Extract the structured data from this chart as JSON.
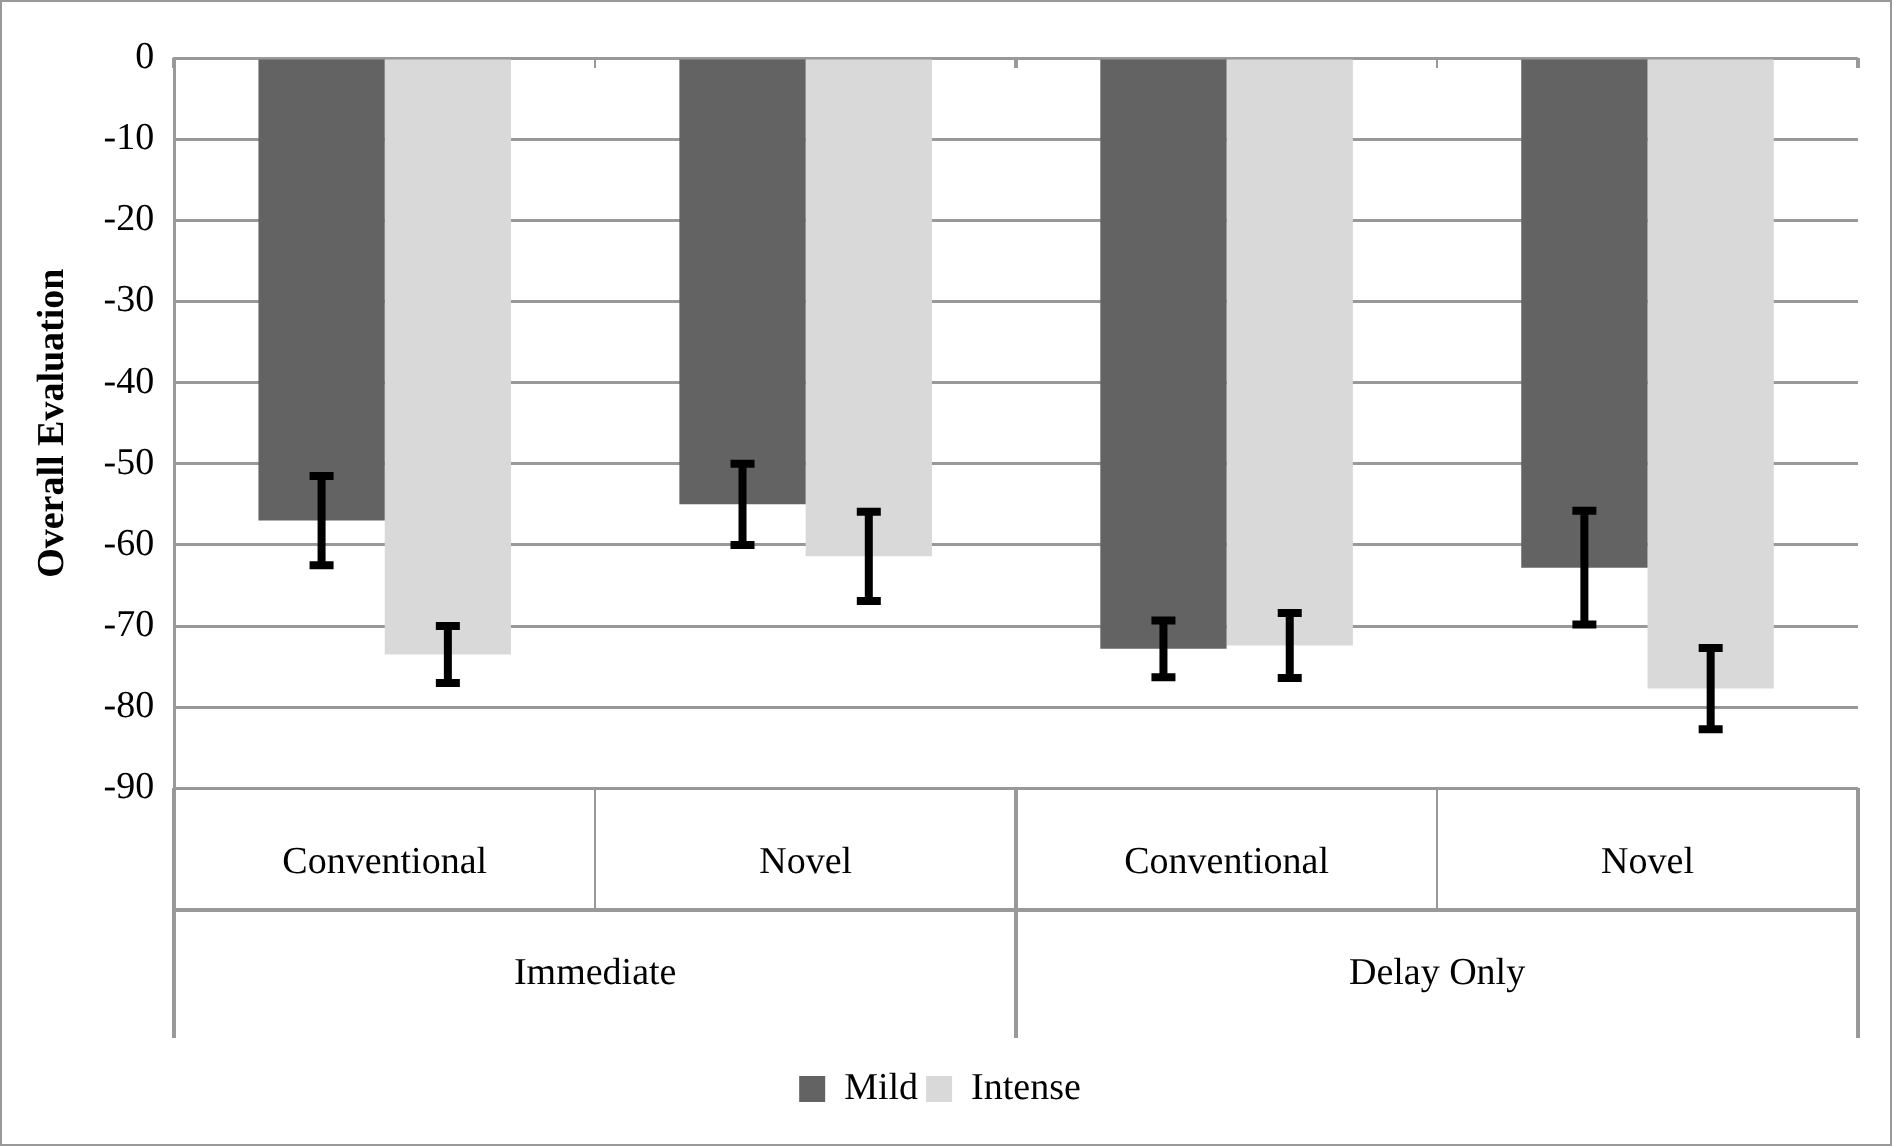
{
  "chart_data": {
    "type": "bar",
    "ylabel": "Overall Evaluation",
    "categories": [
      "Conventional",
      "Novel",
      "Conventional",
      "Novel"
    ],
    "annotations": [
      "Immediate",
      "Delay Only"
    ],
    "series": [
      {
        "name": "Mild",
        "color": "#636363",
        "values": [
          -57,
          -55,
          -72.8,
          -62.8
        ],
        "errors": [
          5.5,
          5,
          3.5,
          7
        ]
      },
      {
        "name": "Intense",
        "color": "#d9d9d9",
        "values": [
          -73.5,
          -61.4,
          -72.4,
          -77.7
        ],
        "errors": [
          3.5,
          5.5,
          4,
          5
        ]
      }
    ],
    "ylim": [
      -90,
      0
    ],
    "yticks": [
      0,
      -10,
      -20,
      -30,
      -40,
      -50,
      -60,
      -70,
      -80,
      -90
    ],
    "grid": "y",
    "legend": "bottom"
  }
}
